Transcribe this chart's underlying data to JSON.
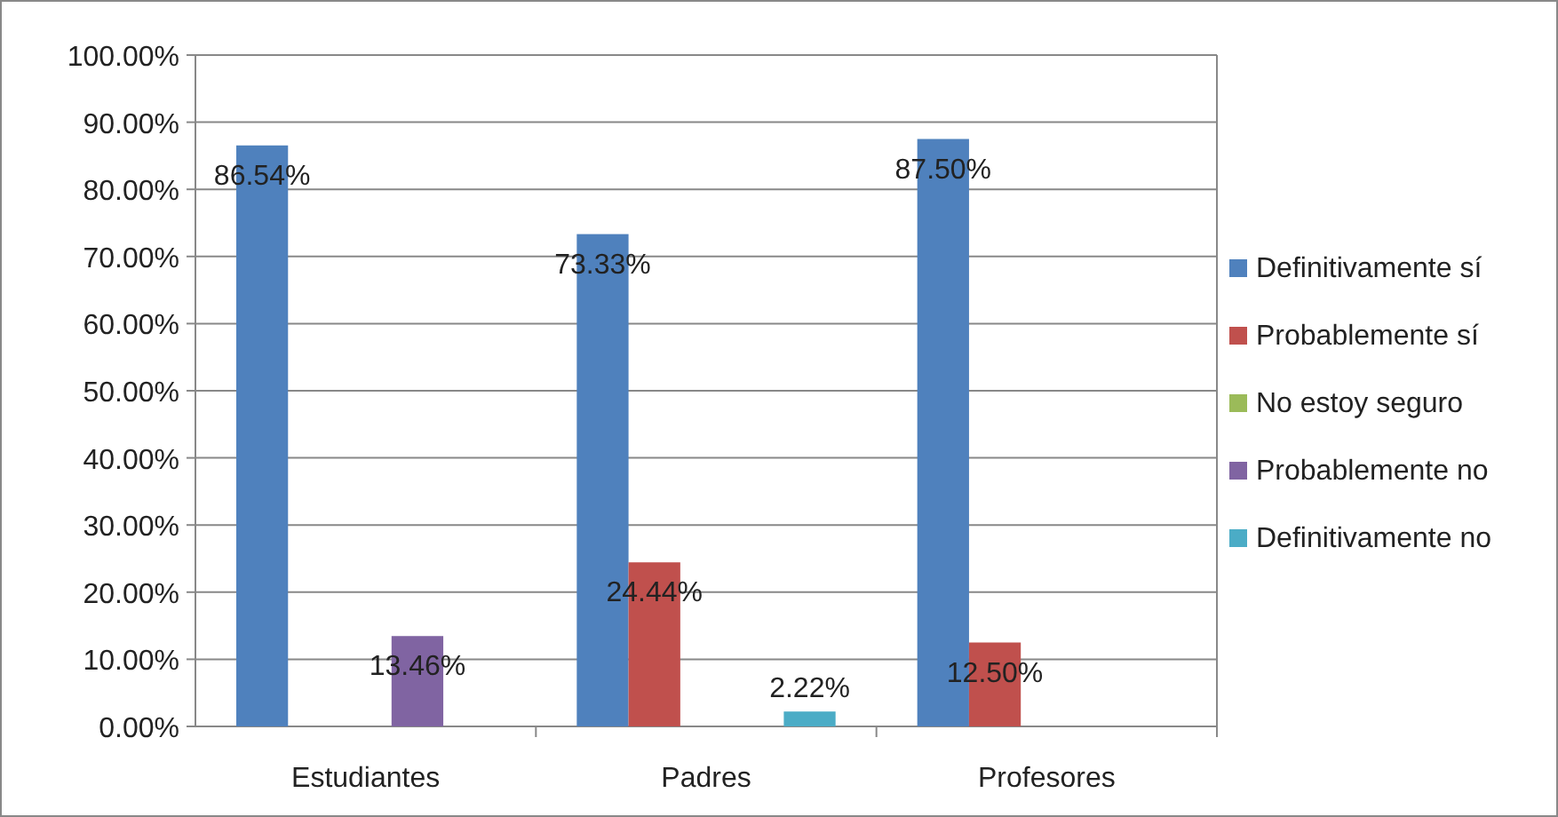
{
  "chart_data": {
    "type": "bar",
    "categories": [
      "Estudiantes",
      "Padres",
      "Profesores"
    ],
    "series": [
      {
        "name": "Definitivamente sí",
        "color": "#4f81bd",
        "values": [
          86.54,
          73.33,
          87.5
        ],
        "value_labels": [
          "86.54%",
          "73.33%",
          "87.50%"
        ]
      },
      {
        "name": "Probablemente sí",
        "color": "#c0504d",
        "values": [
          0,
          24.44,
          12.5
        ],
        "value_labels": [
          null,
          "24.44%",
          "12.50%"
        ]
      },
      {
        "name": "No estoy seguro",
        "color": "#9bbb59",
        "values": [
          0,
          0,
          0
        ],
        "value_labels": [
          null,
          null,
          null
        ]
      },
      {
        "name": "Probablemente no",
        "color": "#8064a2",
        "values": [
          13.46,
          0,
          0
        ],
        "value_labels": [
          "13.46%",
          null,
          null
        ]
      },
      {
        "name": "Definitivamente no",
        "color": "#4bacc6",
        "values": [
          0,
          2.22,
          0
        ],
        "value_labels": [
          null,
          "2.22%",
          null
        ]
      }
    ],
    "ylim": [
      0,
      100
    ],
    "yticks": [
      {
        "value": 0,
        "label": "0.00%"
      },
      {
        "value": 10,
        "label": "10.00%"
      },
      {
        "value": 20,
        "label": "20.00%"
      },
      {
        "value": 30,
        "label": "30.00%"
      },
      {
        "value": 40,
        "label": "40.00%"
      },
      {
        "value": 50,
        "label": "50.00%"
      },
      {
        "value": 60,
        "label": "60.00%"
      },
      {
        "value": 70,
        "label": "70.00%"
      },
      {
        "value": 80,
        "label": "80.00%"
      },
      {
        "value": 90,
        "label": "90.00%"
      },
      {
        "value": 100,
        "label": "100.00%"
      }
    ],
    "grid": "y",
    "legend": "right"
  }
}
